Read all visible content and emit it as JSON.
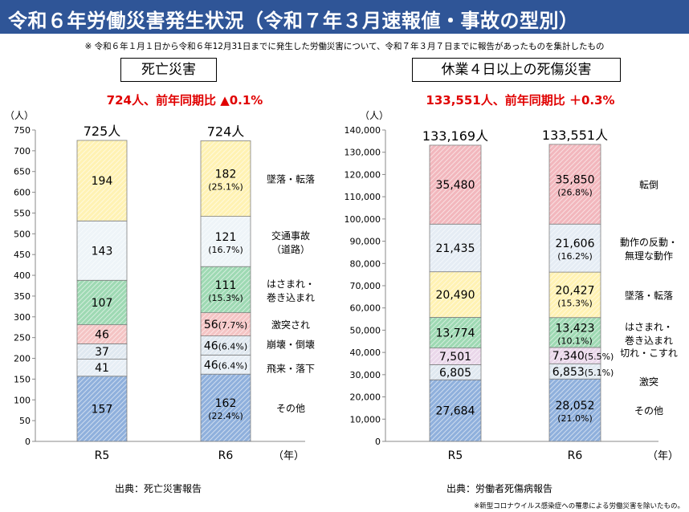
{
  "page": {
    "title": "令和６年労働災害発生状況（令和７年３月速報値・事故の型別）",
    "note": "※ 令和６年１月１日から令和６年12月31日までに発生した労働災害について、令和７年３月７日までに報告があったものを集計したもの",
    "footnote": "※新型コロナウイルス感染症への罹患による労働災害を除いたもの。"
  },
  "colors": {
    "header": "#2f5597",
    "summary": "#e00000",
    "fall": "#fff2b3",
    "traffic": "#eef4f8",
    "caught": "#9ed9b3",
    "collision": "#f4c4c4",
    "collapse": "#dfe8f0",
    "flying": "#e6eef5",
    "other": "#8fb0dc",
    "tumble": "#f2b7bd",
    "motion": "#e5ecf4",
    "cut": "#ead7ea",
    "overall": "#f2b7bd"
  },
  "left": {
    "panel_title": "死亡災害",
    "summary": "724人、前年同期比 ▲0.1%",
    "source": "出典：死亡災害報告"
  },
  "right": {
    "panel_title": "休業４日以上の死傷災害",
    "summary": "133,551人、前年同期比 ＋0.3%",
    "source": "出典：労働者死傷病報告"
  },
  "chart_data": [
    {
      "type": "bar",
      "stacked": true,
      "unit_label": "（人）",
      "x_unit_label": "（年）",
      "categories": [
        "R5",
        "R6"
      ],
      "totals": [
        "725人",
        "724人"
      ],
      "ylim": [
        0,
        750
      ],
      "yticks": [
        0,
        50,
        100,
        150,
        200,
        250,
        300,
        350,
        400,
        450,
        500,
        550,
        600,
        650,
        700,
        750
      ],
      "ytick_labels": [
        "0",
        "50",
        "100",
        "150",
        "200",
        "250",
        "300",
        "350",
        "400",
        "450",
        "500",
        "550",
        "600",
        "650",
        "700",
        "750"
      ],
      "grid": false,
      "series": [
        {
          "key": "other",
          "name": "その他",
          "values": [
            157,
            162
          ],
          "labels": [
            "157",
            "162"
          ],
          "pct": [
            null,
            "(22.4%)"
          ],
          "color_key": "other",
          "text_color": "#000000"
        },
        {
          "key": "flying",
          "name": "飛来・落下",
          "values": [
            41,
            46
          ],
          "labels": [
            "41",
            "46"
          ],
          "pct": [
            null,
            "(6.4%)"
          ],
          "inline_pct": true,
          "color_key": "flying"
        },
        {
          "key": "collapse",
          "name": "崩壊・倒壊",
          "values": [
            37,
            46
          ],
          "labels": [
            "37",
            "46"
          ],
          "pct": [
            null,
            "(6.4%)"
          ],
          "inline_pct": true,
          "color_key": "collapse"
        },
        {
          "key": "collision",
          "name": "激突され",
          "values": [
            46,
            56
          ],
          "labels": [
            "46",
            "56"
          ],
          "pct": [
            null,
            "(7.7%)"
          ],
          "inline_pct": true,
          "color_key": "collision"
        },
        {
          "key": "caught",
          "name": "はさまれ・\n巻き込まれ",
          "values": [
            107,
            111
          ],
          "labels": [
            "107",
            "111"
          ],
          "pct": [
            null,
            "(15.3%)"
          ],
          "color_key": "caught"
        },
        {
          "key": "traffic",
          "name": "交通事故\n（道路）",
          "values": [
            143,
            121
          ],
          "labels": [
            "143",
            "121"
          ],
          "pct": [
            null,
            "(16.7%)"
          ],
          "color_key": "traffic"
        },
        {
          "key": "fall",
          "name": "墜落・転落",
          "values": [
            194,
            182
          ],
          "labels": [
            "194",
            "182"
          ],
          "pct": [
            null,
            "(25.1%)"
          ],
          "color_key": "fall"
        }
      ]
    },
    {
      "type": "bar",
      "stacked": true,
      "unit_label": "（人）",
      "x_unit_label": "（年）",
      "categories": [
        "R5",
        "R6"
      ],
      "totals": [
        "133,169人",
        "133,551人"
      ],
      "ylim": [
        0,
        140000
      ],
      "yticks": [
        0,
        10000,
        20000,
        30000,
        40000,
        50000,
        60000,
        70000,
        80000,
        90000,
        100000,
        110000,
        120000,
        130000,
        140000
      ],
      "ytick_labels": [
        "0",
        "10,000",
        "20,000",
        "30,000",
        "40,000",
        "50,000",
        "60,000",
        "70,000",
        "80,000",
        "90,000",
        "100,000",
        "110,000",
        "120,000",
        "130,000",
        "140,000"
      ],
      "grid": false,
      "series": [
        {
          "key": "other",
          "name": "その他",
          "values": [
            27684,
            28052
          ],
          "labels": [
            "27,684",
            "28,052"
          ],
          "pct": [
            null,
            "(21.0%)"
          ],
          "color_key": "other"
        },
        {
          "key": "collision",
          "name": "激突",
          "values": [
            6805,
            6853
          ],
          "labels": [
            "6,805",
            "6,853"
          ],
          "pct": [
            null,
            "(5.1%)"
          ],
          "inline_pct": true,
          "outside_right": true,
          "color_key": "collapse"
        },
        {
          "key": "cut",
          "name": "切れ・こすれ",
          "values": [
            7501,
            7340
          ],
          "labels": [
            "7,501",
            "7,340"
          ],
          "pct": [
            null,
            "(5.5%)"
          ],
          "inline_pct": true,
          "outside_right": true,
          "color_key": "cut"
        },
        {
          "key": "caught",
          "name": "はさまれ・\n巻き込まれ",
          "values": [
            13774,
            13423
          ],
          "labels": [
            "13,774",
            "13,423"
          ],
          "pct": [
            null,
            "(10.1%)"
          ],
          "color_key": "caught"
        },
        {
          "key": "fall",
          "name": "墜落・転落",
          "values": [
            20490,
            20427
          ],
          "labels": [
            "20,490",
            "20,427"
          ],
          "pct": [
            null,
            "(15.3%)"
          ],
          "color_key": "fall"
        },
        {
          "key": "motion",
          "name": "動作の反動・\n無理な動作",
          "values": [
            21435,
            21606
          ],
          "labels": [
            "21,435",
            "21,606"
          ],
          "pct": [
            null,
            "(16.2%)"
          ],
          "color_key": "motion"
        },
        {
          "key": "tumble",
          "name": "転倒",
          "values": [
            35480,
            35850
          ],
          "labels": [
            "35,480",
            "35,850"
          ],
          "pct": [
            null,
            "(26.8%)"
          ],
          "color_key": "tumble"
        }
      ]
    }
  ]
}
